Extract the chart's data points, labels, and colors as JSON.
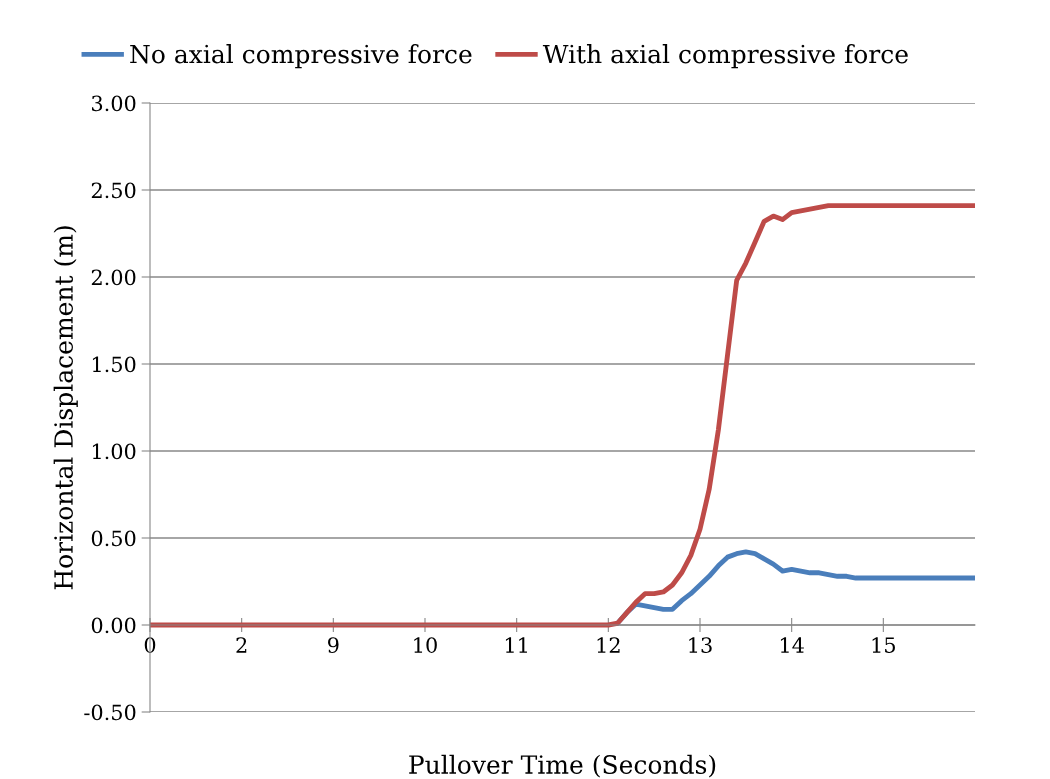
{
  "chart_data": {
    "type": "line",
    "xlabel": "Pullover Time (Seconds)",
    "ylabel": "Horizontal Displacement (m)",
    "categories": [
      "0",
      null,
      null,
      null,
      null,
      null,
      null,
      null,
      null,
      null,
      "2",
      null,
      null,
      null,
      null,
      null,
      null,
      null,
      null,
      null,
      "9",
      null,
      null,
      null,
      null,
      null,
      null,
      null,
      null,
      null,
      "10",
      null,
      null,
      null,
      null,
      null,
      null,
      null,
      null,
      null,
      "11",
      null,
      null,
      null,
      null,
      null,
      null,
      null,
      null,
      null,
      "12",
      null,
      null,
      null,
      null,
      null,
      null,
      null,
      null,
      null,
      "13",
      null,
      null,
      null,
      null,
      null,
      null,
      null,
      null,
      null,
      "14",
      null,
      null,
      null,
      null,
      null,
      null,
      null,
      null,
      null,
      "15",
      null,
      null,
      null,
      null,
      null,
      null,
      null,
      null,
      null,
      null
    ],
    "series": [
      {
        "name": "No axial compressive force",
        "color": "#4a7ebb",
        "values": [
          null,
          null,
          null,
          null,
          null,
          null,
          null,
          null,
          null,
          null,
          null,
          null,
          null,
          null,
          null,
          null,
          null,
          null,
          null,
          null,
          null,
          null,
          null,
          null,
          null,
          null,
          null,
          null,
          null,
          null,
          null,
          null,
          null,
          null,
          null,
          null,
          null,
          null,
          null,
          null,
          null,
          null,
          null,
          null,
          null,
          null,
          null,
          null,
          null,
          null,
          null,
          0.01,
          0.07,
          0.12,
          0.11,
          0.1,
          0.09,
          0.09,
          0.14,
          0.18,
          0.23,
          0.28,
          0.34,
          0.39,
          0.41,
          0.42,
          0.41,
          0.38,
          0.35,
          0.31,
          0.32,
          0.31,
          0.3,
          0.3,
          0.29,
          0.28,
          0.28,
          0.27,
          0.27,
          0.27,
          0.27,
          0.27,
          0.27,
          0.27,
          0.27,
          0.27,
          0.27,
          0.27,
          0.27,
          0.27,
          0.27
        ]
      },
      {
        "name": "With axial compressive force",
        "color": "#be4b48",
        "values": [
          0,
          0,
          0,
          0,
          0,
          0,
          0,
          0,
          0,
          0,
          0,
          0,
          0,
          0,
          0,
          0,
          0,
          0,
          0,
          0,
          0,
          0,
          0,
          0,
          0,
          0,
          0,
          0,
          0,
          0,
          0,
          0,
          0,
          0,
          0,
          0,
          0,
          0,
          0,
          0,
          0,
          0,
          0,
          0,
          0,
          0,
          0,
          0,
          0,
          0,
          0,
          0.01,
          0.07,
          0.13,
          0.18,
          0.18,
          0.19,
          0.23,
          0.3,
          0.4,
          0.55,
          0.78,
          1.12,
          1.55,
          1.98,
          2.08,
          2.2,
          2.32,
          2.35,
          2.33,
          2.37,
          2.38,
          2.39,
          2.4,
          2.41,
          2.41,
          2.41,
          2.41,
          2.41,
          2.41,
          2.41,
          2.41,
          2.41,
          2.41,
          2.41,
          2.41,
          2.41,
          2.41,
          2.41,
          2.41,
          2.41
        ]
      }
    ],
    "ylim": [
      -0.5,
      3.0
    ],
    "yticks": [
      {
        "value": -0.5,
        "label": "-0.50"
      },
      {
        "value": 0,
        "label": "0.00"
      },
      {
        "value": 0.5,
        "label": "0.50"
      },
      {
        "value": 1.0,
        "label": "1.00"
      },
      {
        "value": 1.5,
        "label": "1.50"
      },
      {
        "value": 2.0,
        "label": "2.00"
      },
      {
        "value": 2.5,
        "label": "2.50"
      },
      {
        "value": 3.0,
        "label": "3.00"
      }
    ],
    "grid": "y",
    "legend": "top",
    "marker": "none",
    "line_style": "solid"
  }
}
